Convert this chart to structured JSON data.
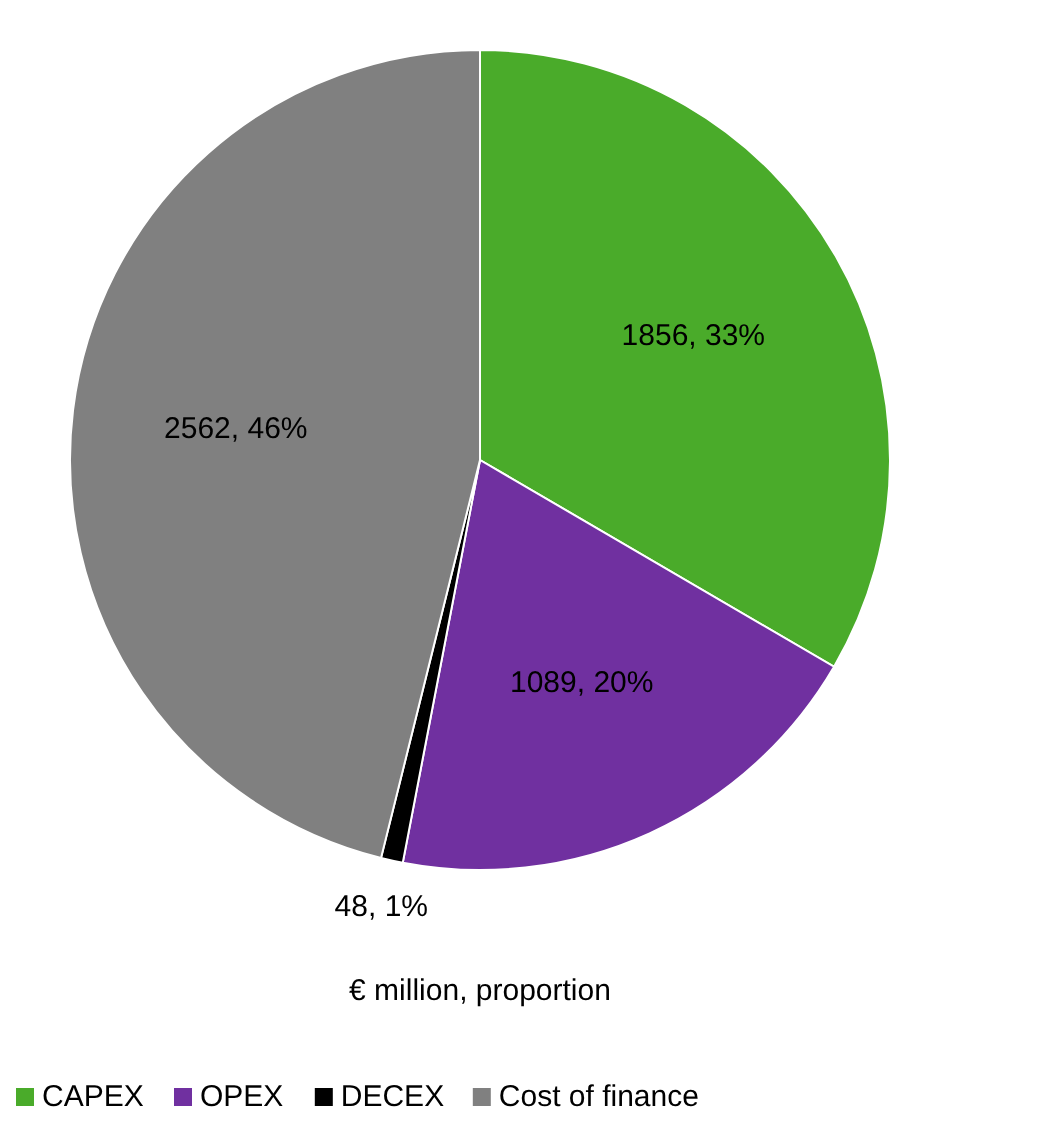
{
  "chart_data": {
    "type": "pie",
    "categories": [
      "CAPEX",
      "OPEX",
      "DECEX",
      "Cost of finance"
    ],
    "values": [
      1856,
      1089,
      48,
      2562
    ],
    "colors": [
      "#4aab2a",
      "#7030a0",
      "#000000",
      "#808080"
    ],
    "value_labels": [
      "1856, 33%",
      "1089, 20%",
      "48, 1%",
      "2562, 46%"
    ],
    "annotations": [
      "€ million,  proportion"
    ],
    "legend": "bottom"
  }
}
